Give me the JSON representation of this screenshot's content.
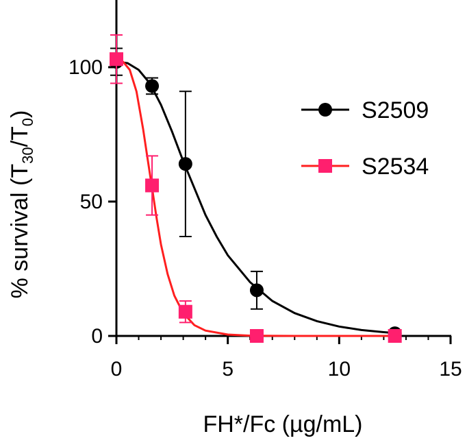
{
  "chart_data": {
    "type": "scatter",
    "xlabel": "FH*/Fc (µg/mL)",
    "ylabel_main": "% survival (T",
    "ylabel_sub1": "30",
    "ylabel_mid": "/T",
    "ylabel_sub2": "0",
    "ylabel_end": ")",
    "xlim": [
      0,
      15
    ],
    "ylim": [
      0,
      125
    ],
    "x_ticks": [
      0,
      5,
      10,
      15
    ],
    "y_ticks": [
      0,
      50,
      100
    ],
    "grid": false,
    "legend_position": "top-right",
    "series": [
      {
        "name": "S2509",
        "color": "#000000",
        "marker": "circle",
        "points": [
          {
            "x": 0,
            "y": 102,
            "err": 5
          },
          {
            "x": 1.6,
            "y": 93,
            "err": 3
          },
          {
            "x": 3.1,
            "y": 64,
            "err": 27
          },
          {
            "x": 6.3,
            "y": 17,
            "err": 7
          },
          {
            "x": 12.5,
            "y": 1,
            "err": 1
          }
        ],
        "fit": [
          [
            0,
            102
          ],
          [
            0.5,
            101.5
          ],
          [
            1,
            99
          ],
          [
            1.5,
            94
          ],
          [
            2,
            86
          ],
          [
            2.5,
            76
          ],
          [
            3,
            65
          ],
          [
            3.5,
            55
          ],
          [
            4,
            45
          ],
          [
            4.5,
            37
          ],
          [
            5,
            30
          ],
          [
            6,
            20
          ],
          [
            7,
            13
          ],
          [
            8,
            8.5
          ],
          [
            9,
            5.5
          ],
          [
            10,
            3.5
          ],
          [
            11,
            2.2
          ],
          [
            12,
            1.4
          ],
          [
            12.5,
            1.1
          ]
        ]
      },
      {
        "name": "S2534",
        "color": "#ff1f6e",
        "line_color": "#ff1f1f",
        "marker": "square",
        "points": [
          {
            "x": 0,
            "y": 103,
            "err": 9
          },
          {
            "x": 1.6,
            "y": 56,
            "err": 11
          },
          {
            "x": 3.1,
            "y": 9,
            "err": 4
          },
          {
            "x": 6.3,
            "y": 0,
            "err": 0
          },
          {
            "x": 12.5,
            "y": 0,
            "err": 0
          }
        ],
        "fit": [
          [
            0,
            103
          ],
          [
            0.3,
            102
          ],
          [
            0.6,
            99
          ],
          [
            0.9,
            91
          ],
          [
            1.2,
            77
          ],
          [
            1.4,
            66
          ],
          [
            1.6,
            55
          ],
          [
            1.8,
            44
          ],
          [
            2,
            34
          ],
          [
            2.3,
            23
          ],
          [
            2.6,
            15
          ],
          [
            3,
            8.5
          ],
          [
            3.5,
            4
          ],
          [
            4,
            2
          ],
          [
            5,
            0.5
          ],
          [
            6,
            0.1
          ],
          [
            8,
            0
          ],
          [
            12.5,
            0
          ]
        ]
      }
    ]
  }
}
